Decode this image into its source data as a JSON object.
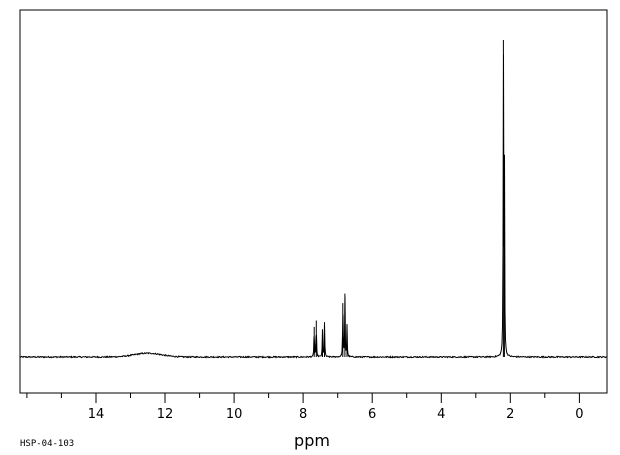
{
  "chart_data": {
    "type": "line",
    "title": "",
    "xlabel": "ppm",
    "ylabel": "",
    "sample_id": "HSP-04-103",
    "x_reversed": true,
    "xlim": [
      16.2,
      -0.8
    ],
    "ylim": [
      -0.12,
      1.0
    ],
    "x_ticks": [
      14,
      12,
      10,
      8,
      6,
      4,
      2,
      0
    ],
    "x_tick_labels": [
      "14",
      "12",
      "10",
      "8",
      "6",
      "4",
      "2",
      "0"
    ],
    "x_minor_step": 1,
    "grid": false,
    "series": [
      {
        "line_color": "#000000",
        "baseline": 0.0,
        "broad_signals": [
          {
            "ppm": 12.5,
            "height": 0.012,
            "width": 0.55
          }
        ],
        "peaks": [
          {
            "ppm": 7.68,
            "height": 0.095
          },
          {
            "ppm": 7.62,
            "height": 0.115
          },
          {
            "ppm": 7.44,
            "height": 0.085
          },
          {
            "ppm": 7.38,
            "height": 0.11
          },
          {
            "ppm": 6.85,
            "height": 0.17
          },
          {
            "ppm": 6.79,
            "height": 0.2
          },
          {
            "ppm": 6.73,
            "height": 0.1
          },
          {
            "ppm": 2.2,
            "height": 1.0
          },
          {
            "ppm": 2.17,
            "height": 0.6
          }
        ]
      }
    ]
  }
}
